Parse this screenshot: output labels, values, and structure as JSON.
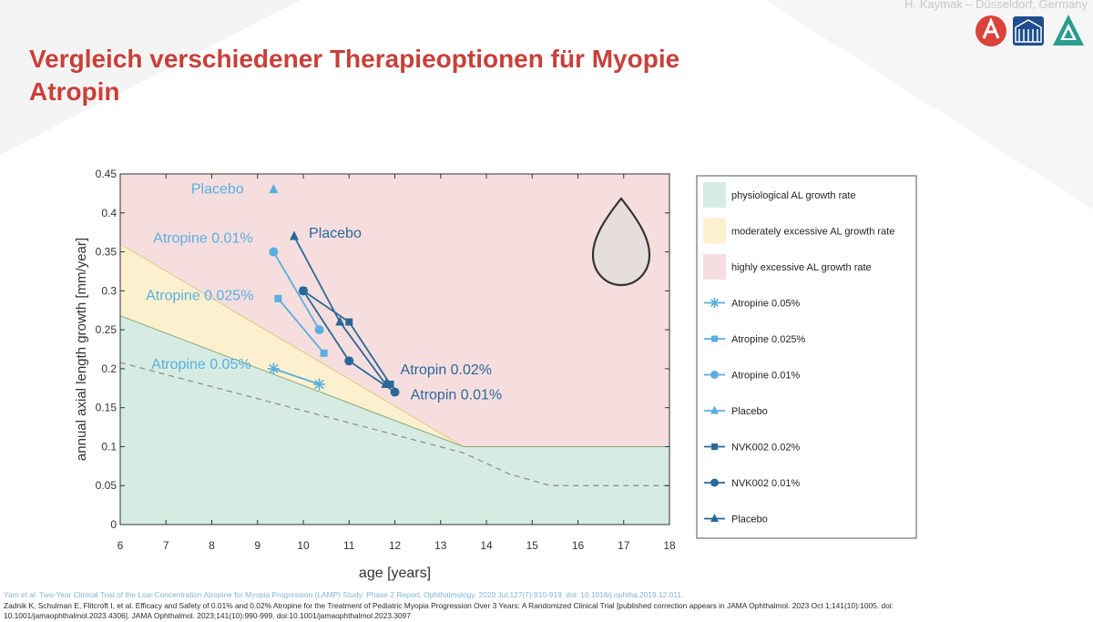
{
  "header": {
    "author": "H. Kaymak – Düsseldorf, Germany",
    "title": "Vergleich verschiedener Therapieoptionen für Myopie",
    "subtitle": "Atropin"
  },
  "colors": {
    "title_red": "#c8403a",
    "zone_physiological": "#d6ece2",
    "zone_moderate": "#fdf0cf",
    "zone_high": "#f7dede",
    "lamp_series": "#5aaee0",
    "nvk_series": "#2a6898",
    "drop_fill": "#e6dedc"
  },
  "chart_data": {
    "type": "line",
    "xlabel": "age [years]",
    "ylabel": "annual axial length growth [mm/year]",
    "xlim": [
      6,
      18
    ],
    "ylim": [
      0,
      0.45
    ],
    "xticks": [
      "6",
      "7",
      "8",
      "9",
      "10",
      "11",
      "12",
      "13",
      "14",
      "15",
      "16",
      "17",
      "18"
    ],
    "yticks": [
      "0",
      "0.05",
      "0.1",
      "0.15",
      "0.2",
      "0.25",
      "0.3",
      "0.35",
      "0.4",
      "0.45"
    ],
    "zones": {
      "physiological_upper": [
        [
          6,
          0.268
        ],
        [
          13.5,
          0.1
        ],
        [
          18,
          0.1
        ]
      ],
      "moderate_upper": [
        [
          6,
          0.36
        ],
        [
          13.5,
          0.1
        ],
        [
          18,
          0.1
        ]
      ],
      "dashed_reference": [
        [
          6,
          0.208
        ],
        [
          13.5,
          0.092
        ],
        [
          14.5,
          0.065
        ],
        [
          15.4,
          0.05
        ],
        [
          18,
          0.05
        ]
      ]
    },
    "legend_position": "right",
    "legend": [
      {
        "label": "physiological AL growth rate",
        "kind": "zone",
        "color": "#d6ece2"
      },
      {
        "label": "moderately excessive AL growth rate",
        "kind": "zone",
        "color": "#fdf0cf"
      },
      {
        "label": "highly excessive AL growth rate",
        "kind": "zone",
        "color": "#f7dede"
      },
      {
        "label": "Atropine 0.05%",
        "kind": "line",
        "marker": "asterisk",
        "color": "#5aaee0"
      },
      {
        "label": "Atropine 0.025%",
        "kind": "line",
        "marker": "square",
        "color": "#5aaee0"
      },
      {
        "label": "Atropine 0.01%",
        "kind": "line",
        "marker": "circle",
        "color": "#5aaee0"
      },
      {
        "label": "Placebo",
        "kind": "line",
        "marker": "triangle",
        "color": "#5aaee0"
      },
      {
        "label": "NVK002 0.02%",
        "kind": "line",
        "marker": "square",
        "color": "#2a6898"
      },
      {
        "label": "NVK002 0.01%",
        "kind": "line",
        "marker": "circle",
        "color": "#2a6898"
      },
      {
        "label": "Placebo",
        "kind": "line",
        "marker": "triangle",
        "color": "#2a6898"
      }
    ],
    "series": [
      {
        "name": "Atropine 0.05%",
        "marker": "asterisk",
        "color": "#5aaee0",
        "x": [
          9.35,
          10.35
        ],
        "y": [
          0.2,
          0.18
        ]
      },
      {
        "name": "Atropine 0.025%",
        "marker": "square",
        "color": "#5aaee0",
        "x": [
          9.45,
          10.45
        ],
        "y": [
          0.29,
          0.22
        ]
      },
      {
        "name": "Atropine 0.01%",
        "marker": "circle",
        "color": "#5aaee0",
        "x": [
          9.35,
          10.35
        ],
        "y": [
          0.35,
          0.25
        ]
      },
      {
        "name": "Placebo",
        "marker": "triangle",
        "color": "#5aaee0",
        "x": [
          9.35
        ],
        "y": [
          0.43
        ]
      },
      {
        "name": "NVK002 0.02%",
        "marker": "square",
        "color": "#2a6898",
        "x": [
          10.0,
          11.0,
          11.9
        ],
        "y": [
          0.3,
          0.26,
          0.18
        ]
      },
      {
        "name": "NVK002 0.01%",
        "marker": "circle",
        "color": "#2a6898",
        "x": [
          10.0,
          11.0,
          12.0
        ],
        "y": [
          0.3,
          0.21,
          0.17
        ]
      },
      {
        "name": "Placebo",
        "marker": "triangle",
        "color": "#2a6898",
        "x": [
          9.8,
          10.8,
          11.8
        ],
        "y": [
          0.37,
          0.26,
          0.18
        ]
      }
    ],
    "annotations": [
      {
        "text": "Placebo",
        "x": 7.55,
        "y": 0.425,
        "color": "#5aaee0"
      },
      {
        "text": "Atropine 0.01%",
        "x": 6.72,
        "y": 0.362,
        "color": "#5aaee0"
      },
      {
        "text": "Atropine 0.025%",
        "x": 6.56,
        "y": 0.288,
        "color": "#5aaee0"
      },
      {
        "text": "Atropine 0.05%",
        "x": 6.68,
        "y": 0.2,
        "color": "#5aaee0"
      },
      {
        "text": "Placebo",
        "x": 10.12,
        "y": 0.368,
        "color": "#2a6898"
      },
      {
        "text": "Atropin 0.02%",
        "x": 12.12,
        "y": 0.193,
        "color": "#2a6898"
      },
      {
        "text": "Atropin 0.01%",
        "x": 12.34,
        "y": 0.161,
        "color": "#2a6898"
      }
    ]
  },
  "references": {
    "ref1": "Yam et al. Two-Year Clinical Trial of the Low-Concentration Atropine for Myopia Progression (LAMP) Study: Phase 2 Report. Ophthalmology. 2020 Jul;127(7):910-919. doi: 10.1016/j.ophtha.2019.12.011.",
    "ref2": "Zadnik K, Schulman E, Flitcroft I, et al. Efficacy and Safety of 0.01% and 0.02% Atropine for the Treatment of Pediatric Myopia Progression Over 3 Years: A Randomized Clinical Trial [published correction appears in JAMA Ophthalmol. 2023 Oct 1;141(10):1005. doi:",
    "ref3": "10.1001/jamaophthalmol.2023.4306]. JAMA Ophthalmol. 2023;141(10):990-999. doi:10.1001/jamaophthalmol.2023.3097"
  }
}
